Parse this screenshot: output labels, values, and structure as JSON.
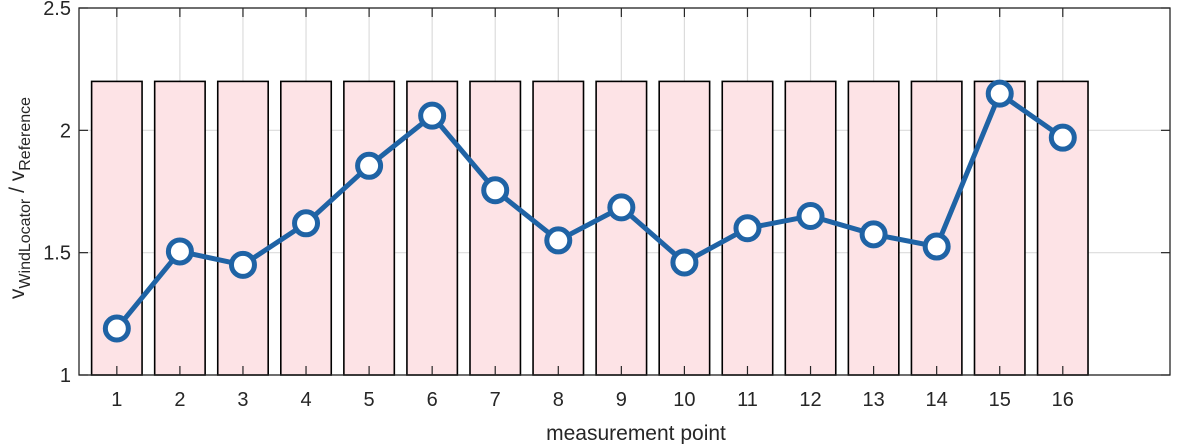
{
  "chart_data": {
    "type": "line",
    "xlabel": "measurement point",
    "ylabel": {
      "v1": "v",
      "sub1": "WindLocator",
      "sep": " / ",
      "v2": "v",
      "sub2": "Reference"
    },
    "x": [
      1,
      2,
      3,
      4,
      5,
      6,
      7,
      8,
      9,
      10,
      11,
      12,
      13,
      14,
      15,
      16
    ],
    "xlim": [
      0.4,
      17.7
    ],
    "ylim": [
      1,
      2.5
    ],
    "xticks": [
      1,
      2,
      3,
      4,
      5,
      6,
      7,
      8,
      9,
      10,
      11,
      12,
      13,
      14,
      15,
      16
    ],
    "yticks": [
      1,
      1.5,
      2,
      2.5
    ],
    "ytick_labels": [
      "1",
      "1.5",
      "2",
      "2.5"
    ],
    "grid": true,
    "series": [
      {
        "values": [
          1.19,
          1.505,
          1.45,
          1.62,
          1.855,
          2.06,
          1.755,
          1.55,
          1.685,
          1.46,
          1.6,
          1.65,
          1.575,
          1.525,
          2.15,
          1.97
        ]
      }
    ],
    "bars": {
      "values": [
        2.2,
        2.2,
        2.2,
        2.2,
        2.2,
        2.2,
        2.2,
        2.2,
        2.2,
        2.2,
        2.2,
        2.2,
        2.2,
        2.2,
        2.2,
        2.2
      ],
      "base": 1,
      "width": 0.8
    },
    "colors": {
      "line": "#1f63a5",
      "bar_fill": "#fde3e6",
      "bar_edge": "#000000",
      "grid": "#dcdcdc",
      "axis": "#262626"
    }
  }
}
